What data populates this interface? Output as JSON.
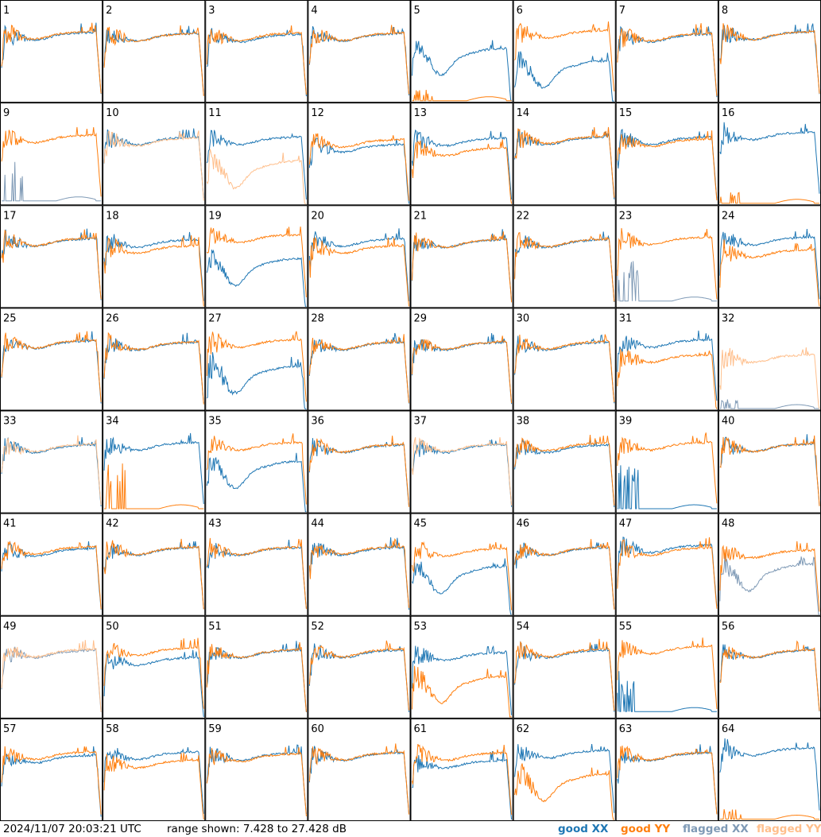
{
  "footer": {
    "timestamp": "2024/11/07 20:03:21 UTC",
    "range_label": "range shown: 7.428 to 27.428 dB"
  },
  "legend": {
    "good_xx": "good XX",
    "good_yy": "good YY",
    "flagged_xx": "flagged XX",
    "flagged_yy": "flagged YY"
  },
  "colors": {
    "good_xx": "#1f77b4",
    "good_yy": "#ff7f0e",
    "flagged_xx": "#7f9ab6",
    "flagged_yy": "#ffbf8c",
    "grid_line": "#000000"
  },
  "chart_data": {
    "type": "line",
    "ylim": [
      7.428,
      27.428
    ],
    "y_unit": "dB",
    "grid": true,
    "rows": 8,
    "cols": 8,
    "legend_position": "bottom-right",
    "panels": [
      {
        "label": "1",
        "xx": {
          "status": "good",
          "level": 20.4,
          "spike": 4.0
        },
        "yy": {
          "status": "good",
          "level": 20.6,
          "spike": 4.0
        }
      },
      {
        "label": "2",
        "xx": {
          "status": "good",
          "level": 20.2,
          "spike": 3.5
        },
        "yy": {
          "status": "good",
          "level": 20.2,
          "spike": 4.0
        }
      },
      {
        "label": "3",
        "xx": {
          "status": "good",
          "level": 20.0,
          "spike": 3.5
        },
        "yy": {
          "status": "good",
          "level": 20.3,
          "spike": 3.5
        }
      },
      {
        "label": "4",
        "xx": {
          "status": "good",
          "level": 20.2,
          "spike": 3.5
        },
        "yy": {
          "status": "good",
          "level": 20.3,
          "spike": 3.5
        }
      },
      {
        "label": "5",
        "xx": {
          "status": "good",
          "level": 18.0,
          "spike": 3.0,
          "shape": "dip"
        },
        "yy": {
          "status": "good",
          "level": 7.5,
          "spike": 1.5,
          "shape": "dead"
        }
      },
      {
        "label": "6",
        "xx": {
          "status": "good",
          "level": 15.5,
          "spike": 4.0,
          "shape": "dip"
        },
        "yy": {
          "status": "good",
          "level": 20.8,
          "spike": 4.0
        }
      },
      {
        "label": "7",
        "xx": {
          "status": "good",
          "level": 20.0,
          "spike": 3.5
        },
        "yy": {
          "status": "good",
          "level": 20.2,
          "spike": 4.0
        }
      },
      {
        "label": "8",
        "xx": {
          "status": "good",
          "level": 20.5,
          "spike": 4.0
        },
        "yy": {
          "status": "good",
          "level": 20.5,
          "spike": 4.0
        }
      },
      {
        "label": "9",
        "xx": {
          "status": "flagged",
          "level": 8.0,
          "spike": 6.0,
          "shape": "dead"
        },
        "yy": {
          "status": "good",
          "level": 20.4,
          "spike": 3.5
        }
      },
      {
        "label": "10",
        "xx": {
          "status": "good",
          "level": 20.0,
          "spike": 3.5
        },
        "yy": {
          "status": "flagged",
          "level": 19.8,
          "spike": 4.0
        }
      },
      {
        "label": "11",
        "xx": {
          "status": "good",
          "level": 20.0,
          "spike": 3.5
        },
        "yy": {
          "status": "flagged",
          "level": 16.0,
          "spike": 4.0,
          "shape": "dip"
        }
      },
      {
        "label": "12",
        "xx": {
          "status": "good",
          "level": 18.5,
          "spike": 3.5
        },
        "yy": {
          "status": "good",
          "level": 19.5,
          "spike": 3.5
        }
      },
      {
        "label": "13",
        "xx": {
          "status": "good",
          "level": 19.8,
          "spike": 3.5
        },
        "yy": {
          "status": "good",
          "level": 17.8,
          "spike": 4.0
        }
      },
      {
        "label": "14",
        "xx": {
          "status": "good",
          "level": 20.0,
          "spike": 3.5
        },
        "yy": {
          "status": "good",
          "level": 20.2,
          "spike": 3.5
        }
      },
      {
        "label": "15",
        "xx": {
          "status": "good",
          "level": 20.0,
          "spike": 3.5
        },
        "yy": {
          "status": "good",
          "level": 19.6,
          "spike": 3.5
        }
      },
      {
        "label": "16",
        "xx": {
          "status": "good",
          "level": 21.0,
          "spike": 4.0
        },
        "yy": {
          "status": "good",
          "level": 7.5,
          "spike": 1.5,
          "shape": "dead"
        }
      },
      {
        "label": "17",
        "xx": {
          "status": "good",
          "level": 20.2,
          "spike": 3.5
        },
        "yy": {
          "status": "good",
          "level": 20.3,
          "spike": 3.5
        }
      },
      {
        "label": "18",
        "xx": {
          "status": "good",
          "level": 20.0,
          "spike": 3.5
        },
        "yy": {
          "status": "good",
          "level": 18.8,
          "spike": 4.0
        }
      },
      {
        "label": "19",
        "xx": {
          "status": "good",
          "level": 17.0,
          "spike": 3.5,
          "shape": "dip"
        },
        "yy": {
          "status": "good",
          "level": 21.0,
          "spike": 3.5
        }
      },
      {
        "label": "20",
        "xx": {
          "status": "good",
          "level": 20.2,
          "spike": 3.5
        },
        "yy": {
          "status": "good",
          "level": 18.8,
          "spike": 4.0
        }
      },
      {
        "label": "21",
        "xx": {
          "status": "good",
          "level": 20.0,
          "spike": 3.5
        },
        "yy": {
          "status": "good",
          "level": 20.0,
          "spike": 3.5
        }
      },
      {
        "label": "22",
        "xx": {
          "status": "good",
          "level": 20.0,
          "spike": 3.5
        },
        "yy": {
          "status": "good",
          "level": 20.1,
          "spike": 3.5
        }
      },
      {
        "label": "23",
        "xx": {
          "status": "flagged",
          "level": 8.5,
          "spike": 5.5,
          "shape": "dead"
        },
        "yy": {
          "status": "good",
          "level": 20.5,
          "spike": 4.0
        }
      },
      {
        "label": "24",
        "xx": {
          "status": "good",
          "level": 20.5,
          "spike": 4.0
        },
        "yy": {
          "status": "good",
          "level": 18.0,
          "spike": 4.0
        }
      },
      {
        "label": "25",
        "xx": {
          "status": "good",
          "level": 20.3,
          "spike": 3.5
        },
        "yy": {
          "status": "good",
          "level": 20.4,
          "spike": 3.5
        }
      },
      {
        "label": "26",
        "xx": {
          "status": "good",
          "level": 20.0,
          "spike": 3.5
        },
        "yy": {
          "status": "good",
          "level": 20.1,
          "spike": 3.5
        }
      },
      {
        "label": "27",
        "xx": {
          "status": "good",
          "level": 16.0,
          "spike": 5.0,
          "shape": "dip"
        },
        "yy": {
          "status": "good",
          "level": 20.5,
          "spike": 4.0
        }
      },
      {
        "label": "28",
        "xx": {
          "status": "good",
          "level": 20.0,
          "spike": 3.5
        },
        "yy": {
          "status": "good",
          "level": 20.1,
          "spike": 3.5
        }
      },
      {
        "label": "29",
        "xx": {
          "status": "good",
          "level": 20.0,
          "spike": 3.5
        },
        "yy": {
          "status": "good",
          "level": 20.1,
          "spike": 3.5
        }
      },
      {
        "label": "30",
        "xx": {
          "status": "good",
          "level": 20.0,
          "spike": 3.5
        },
        "yy": {
          "status": "good",
          "level": 20.2,
          "spike": 3.5
        }
      },
      {
        "label": "31",
        "xx": {
          "status": "good",
          "level": 20.5,
          "spike": 4.0
        },
        "yy": {
          "status": "good",
          "level": 17.5,
          "spike": 4.0
        }
      },
      {
        "label": "32",
        "xx": {
          "status": "flagged",
          "level": 7.5,
          "spike": 1.5,
          "shape": "dead"
        },
        "yy": {
          "status": "flagged",
          "level": 17.5,
          "spike": 4.5
        }
      },
      {
        "label": "33",
        "xx": {
          "status": "good",
          "level": 20.0,
          "spike": 3.5
        },
        "yy": {
          "status": "flagged",
          "level": 20.2,
          "spike": 3.5
        }
      },
      {
        "label": "34",
        "xx": {
          "status": "good",
          "level": 20.5,
          "spike": 4.0
        },
        "yy": {
          "status": "good",
          "level": 8.0,
          "spike": 6.5,
          "shape": "dead"
        }
      },
      {
        "label": "35",
        "xx": {
          "status": "good",
          "level": 17.5,
          "spike": 3.5,
          "shape": "dip"
        },
        "yy": {
          "status": "good",
          "level": 20.5,
          "spike": 3.5
        }
      },
      {
        "label": "36",
        "xx": {
          "status": "good",
          "level": 20.0,
          "spike": 3.5
        },
        "yy": {
          "status": "good",
          "level": 20.1,
          "spike": 3.5
        }
      },
      {
        "label": "37",
        "xx": {
          "status": "good",
          "level": 20.0,
          "spike": 3.5
        },
        "yy": {
          "status": "flagged",
          "level": 20.2,
          "spike": 3.5
        }
      },
      {
        "label": "38",
        "xx": {
          "status": "good",
          "level": 20.0,
          "spike": 3.5
        },
        "yy": {
          "status": "good",
          "level": 20.4,
          "spike": 3.5
        }
      },
      {
        "label": "39",
        "xx": {
          "status": "good",
          "level": 8.0,
          "spike": 6.0,
          "shape": "dead"
        },
        "yy": {
          "status": "good",
          "level": 20.5,
          "spike": 3.5
        }
      },
      {
        "label": "40",
        "xx": {
          "status": "good",
          "level": 20.2,
          "spike": 3.5
        },
        "yy": {
          "status": "good",
          "level": 20.2,
          "spike": 3.5
        }
      },
      {
        "label": "41",
        "xx": {
          "status": "good",
          "level": 19.8,
          "spike": 3.5
        },
        "yy": {
          "status": "good",
          "level": 20.2,
          "spike": 3.5
        }
      },
      {
        "label": "42",
        "xx": {
          "status": "good",
          "level": 20.0,
          "spike": 3.5
        },
        "yy": {
          "status": "good",
          "level": 20.1,
          "spike": 3.5
        }
      },
      {
        "label": "43",
        "xx": {
          "status": "good",
          "level": 20.0,
          "spike": 3.5
        },
        "yy": {
          "status": "good",
          "level": 20.1,
          "spike": 3.5
        }
      },
      {
        "label": "44",
        "xx": {
          "status": "good",
          "level": 20.0,
          "spike": 3.5
        },
        "yy": {
          "status": "good",
          "level": 20.2,
          "spike": 3.5
        }
      },
      {
        "label": "45",
        "xx": {
          "status": "good",
          "level": 17.0,
          "spike": 3.5,
          "shape": "dip"
        },
        "yy": {
          "status": "good",
          "level": 19.8,
          "spike": 4.0
        }
      },
      {
        "label": "46",
        "xx": {
          "status": "good",
          "level": 20.0,
          "spike": 3.5
        },
        "yy": {
          "status": "good",
          "level": 20.1,
          "spike": 3.5
        }
      },
      {
        "label": "47",
        "xx": {
          "status": "good",
          "level": 20.5,
          "spike": 4.0
        },
        "yy": {
          "status": "good",
          "level": 20.0,
          "spike": 4.0
        }
      },
      {
        "label": "48",
        "xx": {
          "status": "flagged",
          "level": 17.5,
          "spike": 4.0,
          "shape": "dip"
        },
        "yy": {
          "status": "good",
          "level": 19.5,
          "spike": 4.0
        }
      },
      {
        "label": "49",
        "xx": {
          "status": "flagged",
          "level": 20.0,
          "spike": 3.5
        },
        "yy": {
          "status": "flagged",
          "level": 20.2,
          "spike": 3.5
        }
      },
      {
        "label": "50",
        "xx": {
          "status": "good",
          "level": 18.5,
          "spike": 3.5
        },
        "yy": {
          "status": "good",
          "level": 20.5,
          "spike": 3.5
        }
      },
      {
        "label": "51",
        "xx": {
          "status": "good",
          "level": 20.0,
          "spike": 3.5
        },
        "yy": {
          "status": "good",
          "level": 20.1,
          "spike": 3.5
        }
      },
      {
        "label": "52",
        "xx": {
          "status": "good",
          "level": 20.0,
          "spike": 3.5
        },
        "yy": {
          "status": "good",
          "level": 20.2,
          "spike": 3.5
        }
      },
      {
        "label": "53",
        "xx": {
          "status": "good",
          "level": 19.5,
          "spike": 4.0
        },
        "yy": {
          "status": "good",
          "level": 15.5,
          "spike": 5.0,
          "shape": "dip"
        }
      },
      {
        "label": "54",
        "xx": {
          "status": "good",
          "level": 20.0,
          "spike": 3.5
        },
        "yy": {
          "status": "good",
          "level": 20.2,
          "spike": 3.5
        }
      },
      {
        "label": "55",
        "xx": {
          "status": "good",
          "level": 8.5,
          "spike": 5.5,
          "shape": "dead"
        },
        "yy": {
          "status": "good",
          "level": 20.8,
          "spike": 4.0
        }
      },
      {
        "label": "56",
        "xx": {
          "status": "good",
          "level": 20.0,
          "spike": 3.5
        },
        "yy": {
          "status": "good",
          "level": 20.1,
          "spike": 3.5
        }
      },
      {
        "label": "57",
        "xx": {
          "status": "good",
          "level": 19.5,
          "spike": 3.5
        },
        "yy": {
          "status": "good",
          "level": 20.2,
          "spike": 3.5
        }
      },
      {
        "label": "58",
        "xx": {
          "status": "good",
          "level": 20.2,
          "spike": 3.5
        },
        "yy": {
          "status": "good",
          "level": 18.5,
          "spike": 4.0
        }
      },
      {
        "label": "59",
        "xx": {
          "status": "good",
          "level": 20.0,
          "spike": 3.5
        },
        "yy": {
          "status": "good",
          "level": 19.8,
          "spike": 3.5
        }
      },
      {
        "label": "60",
        "xx": {
          "status": "good",
          "level": 20.0,
          "spike": 3.5
        },
        "yy": {
          "status": "good",
          "level": 20.1,
          "spike": 3.5
        }
      },
      {
        "label": "61",
        "xx": {
          "status": "good",
          "level": 18.5,
          "spike": 3.5
        },
        "yy": {
          "status": "good",
          "level": 20.0,
          "spike": 4.0
        }
      },
      {
        "label": "62",
        "xx": {
          "status": "good",
          "level": 20.5,
          "spike": 3.5
        },
        "yy": {
          "status": "good",
          "level": 16.5,
          "spike": 5.0,
          "shape": "dip"
        }
      },
      {
        "label": "63",
        "xx": {
          "status": "good",
          "level": 20.0,
          "spike": 3.5
        },
        "yy": {
          "status": "good",
          "level": 20.1,
          "spike": 3.5
        }
      },
      {
        "label": "64",
        "xx": {
          "status": "good",
          "level": 21.0,
          "spike": 4.0
        },
        "yy": {
          "status": "good",
          "level": 7.5,
          "spike": 1.5,
          "shape": "dead"
        }
      }
    ]
  }
}
